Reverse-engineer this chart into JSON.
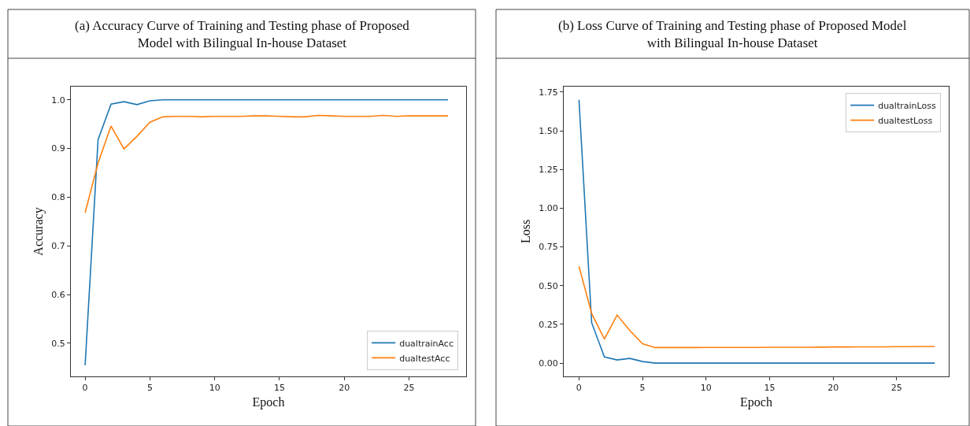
{
  "chart_data": [
    {
      "type": "line",
      "title": "(a) Accuracy Curve of Training and Testing phase of Proposed Model with Bilingual In-house Dataset",
      "xlabel": "Epoch",
      "ylabel": "Accuracy",
      "x": [
        0,
        1,
        2,
        3,
        4,
        5,
        6,
        7,
        8,
        9,
        10,
        11,
        12,
        13,
        14,
        15,
        16,
        17,
        18,
        19,
        20,
        21,
        22,
        23,
        24,
        25,
        26,
        27,
        28
      ],
      "series": [
        {
          "name": "dualtrainAcc",
          "color": "#1f77b4",
          "values": [
            0.455,
            0.918,
            0.991,
            0.996,
            0.99,
            0.998,
            1.0,
            1.0,
            1.0,
            1.0,
            1.0,
            1.0,
            1.0,
            1.0,
            1.0,
            1.0,
            1.0,
            1.0,
            1.0,
            1.0,
            1.0,
            1.0,
            1.0,
            1.0,
            1.0,
            1.0,
            1.0,
            1.0,
            1.0
          ]
        },
        {
          "name": "dualtestAcc",
          "color": "#ff7f0e",
          "values": [
            0.768,
            0.87,
            0.946,
            0.899,
            0.925,
            0.954,
            0.965,
            0.966,
            0.966,
            0.965,
            0.966,
            0.966,
            0.966,
            0.967,
            0.967,
            0.966,
            0.965,
            0.965,
            0.968,
            0.967,
            0.966,
            0.966,
            0.966,
            0.968,
            0.966,
            0.967,
            0.967,
            0.967,
            0.967
          ]
        }
      ],
      "xlim": [
        -1.1,
        29.4
      ],
      "ylim": [
        0.432,
        1.027
      ],
      "xticks": [
        0,
        5,
        10,
        15,
        20,
        25
      ],
      "yticks": [
        0.5,
        0.6,
        0.7,
        0.8,
        0.9,
        {
          "value": 1.0,
          "label": "1.0"
        }
      ],
      "legend": "bottom right",
      "line_style": "solid",
      "marker": "none"
    },
    {
      "type": "line",
      "title": "(b) Loss Curve of Training and Testing phase of Proposed Model with Bilingual In-house Dataset",
      "xlabel": "Epoch",
      "ylabel": "Loss",
      "x": [
        0,
        1,
        2,
        3,
        4,
        5,
        6,
        7,
        8,
        9,
        10,
        11,
        12,
        13,
        14,
        15,
        16,
        17,
        18,
        19,
        20,
        21,
        22,
        23,
        24,
        25,
        26,
        27,
        28
      ],
      "series": [
        {
          "name": "dualtrainLoss",
          "color": "#1f77b4",
          "values": [
            1.7,
            0.26,
            0.04,
            0.02,
            0.03,
            0.01,
            0.0,
            0.0,
            0.0,
            0.0,
            0.0,
            0.0,
            0.0,
            0.0,
            0.0,
            0.0,
            0.0,
            0.0,
            0.0,
            0.0,
            0.0,
            0.0,
            0.0,
            0.0,
            0.0,
            0.0,
            0.0,
            0.0,
            0.0
          ]
        },
        {
          "name": "dualtestLoss",
          "color": "#ff7f0e",
          "values": [
            0.625,
            0.32,
            0.155,
            0.31,
            0.21,
            0.125,
            0.1,
            0.1,
            0.1,
            0.1,
            0.101,
            0.101,
            0.101,
            0.101,
            0.101,
            0.102,
            0.102,
            0.102,
            0.102,
            0.103,
            0.104,
            0.104,
            0.105,
            0.105,
            0.105,
            0.106,
            0.106,
            0.107,
            0.107
          ]
        }
      ],
      "xlim": [
        -1.2,
        29.1
      ],
      "ylim": [
        -0.086,
        1.785
      ],
      "xticks": [
        0,
        5,
        10,
        15,
        20,
        25
      ],
      "yticks": [
        {
          "value": 0.0,
          "label": "0.00"
        },
        {
          "value": 0.25,
          "label": "0.25"
        },
        {
          "value": 0.5,
          "label": "0.50"
        },
        {
          "value": 0.75,
          "label": "0.75"
        },
        {
          "value": 1.0,
          "label": "1.00"
        },
        {
          "value": 1.25,
          "label": "1.25"
        },
        {
          "value": 1.5,
          "label": "1.50"
        },
        {
          "value": 1.75,
          "label": "1.75"
        }
      ],
      "legend": "top right",
      "line_style": "solid",
      "marker": "none"
    }
  ]
}
